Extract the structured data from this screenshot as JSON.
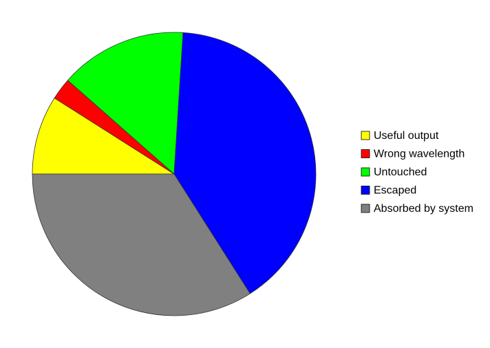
{
  "chart_data": {
    "type": "pie",
    "title": "",
    "start_angle_deg": 180,
    "direction": "clockwise",
    "legend_position": "right",
    "slices": [
      {
        "label": "Useful output",
        "value": 9,
        "color": "#ffff00"
      },
      {
        "label": "Wrong wavelength",
        "value": 2.5,
        "color": "#ff0000"
      },
      {
        "label": "Untouched",
        "value": 14.5,
        "color": "#00ff00"
      },
      {
        "label": "Escaped",
        "value": 40,
        "color": "#0000ff"
      },
      {
        "label": "Absorbed by system",
        "value": 34,
        "color": "#808080"
      }
    ]
  }
}
